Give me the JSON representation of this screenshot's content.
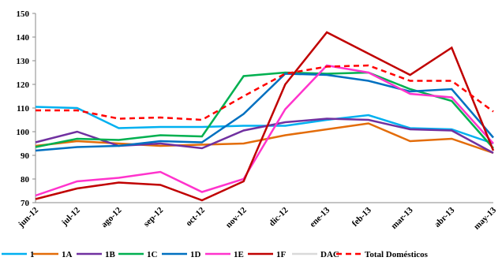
{
  "chart_data": {
    "type": "line",
    "categories": [
      "jun-12",
      "jul-12",
      "ago-12",
      "sep-12",
      "oct-12",
      "nov-12",
      "dic-12",
      "ene-13",
      "feb-13",
      "mar-13",
      "abr-13",
      "may-13"
    ],
    "series": [
      {
        "name": "1",
        "color": "#00b0f0",
        "values": [
          110.5,
          110,
          101.5,
          102,
          102,
          102.5,
          102.5,
          105,
          107,
          101.5,
          101,
          95
        ]
      },
      {
        "name": "1A",
        "color": "#e36c09",
        "values": [
          94,
          96,
          95,
          94,
          94.5,
          95,
          98.5,
          101,
          103.5,
          96,
          97,
          91
        ]
      },
      {
        "name": "1B",
        "color": "#7030a0",
        "values": [
          95.5,
          100,
          94,
          95,
          93,
          100.5,
          104,
          105.5,
          105,
          101,
          100.5,
          91
        ]
      },
      {
        "name": "1C",
        "color": "#00b050",
        "values": [
          93.5,
          97,
          96.5,
          98.5,
          98,
          123.5,
          125,
          124.5,
          125,
          118,
          113,
          93
        ]
      },
      {
        "name": "1D",
        "color": "#0070c0",
        "values": [
          92,
          93.5,
          94,
          96,
          95.5,
          107.5,
          124.5,
          124,
          121.5,
          117,
          118,
          97.5
        ]
      },
      {
        "name": "1E",
        "color": "#ff33cc",
        "values": [
          73,
          79,
          80.5,
          83,
          74.5,
          80,
          109.5,
          128,
          125,
          116,
          114.5,
          95
        ]
      },
      {
        "name": "1F",
        "color": "#c00000",
        "values": [
          71.5,
          76,
          78.5,
          77.5,
          71,
          79,
          120,
          142,
          133,
          124,
          135.5,
          92
        ]
      },
      {
        "name": "DAC",
        "color": "#d9d9d9",
        "values": [
          null,
          null,
          null,
          null,
          null,
          null,
          null,
          null,
          null,
          null,
          null,
          null
        ]
      },
      {
        "name": "Total Domésticos",
        "color": "#ff0000",
        "dashed": true,
        "values": [
          109,
          109,
          105.5,
          106,
          105,
          115,
          124.5,
          127.5,
          128,
          121.5,
          121.5,
          108.5
        ]
      }
    ],
    "ylim": [
      70,
      150
    ],
    "yticks": [
      70,
      80,
      90,
      100,
      110,
      120,
      130,
      140,
      150
    ]
  }
}
